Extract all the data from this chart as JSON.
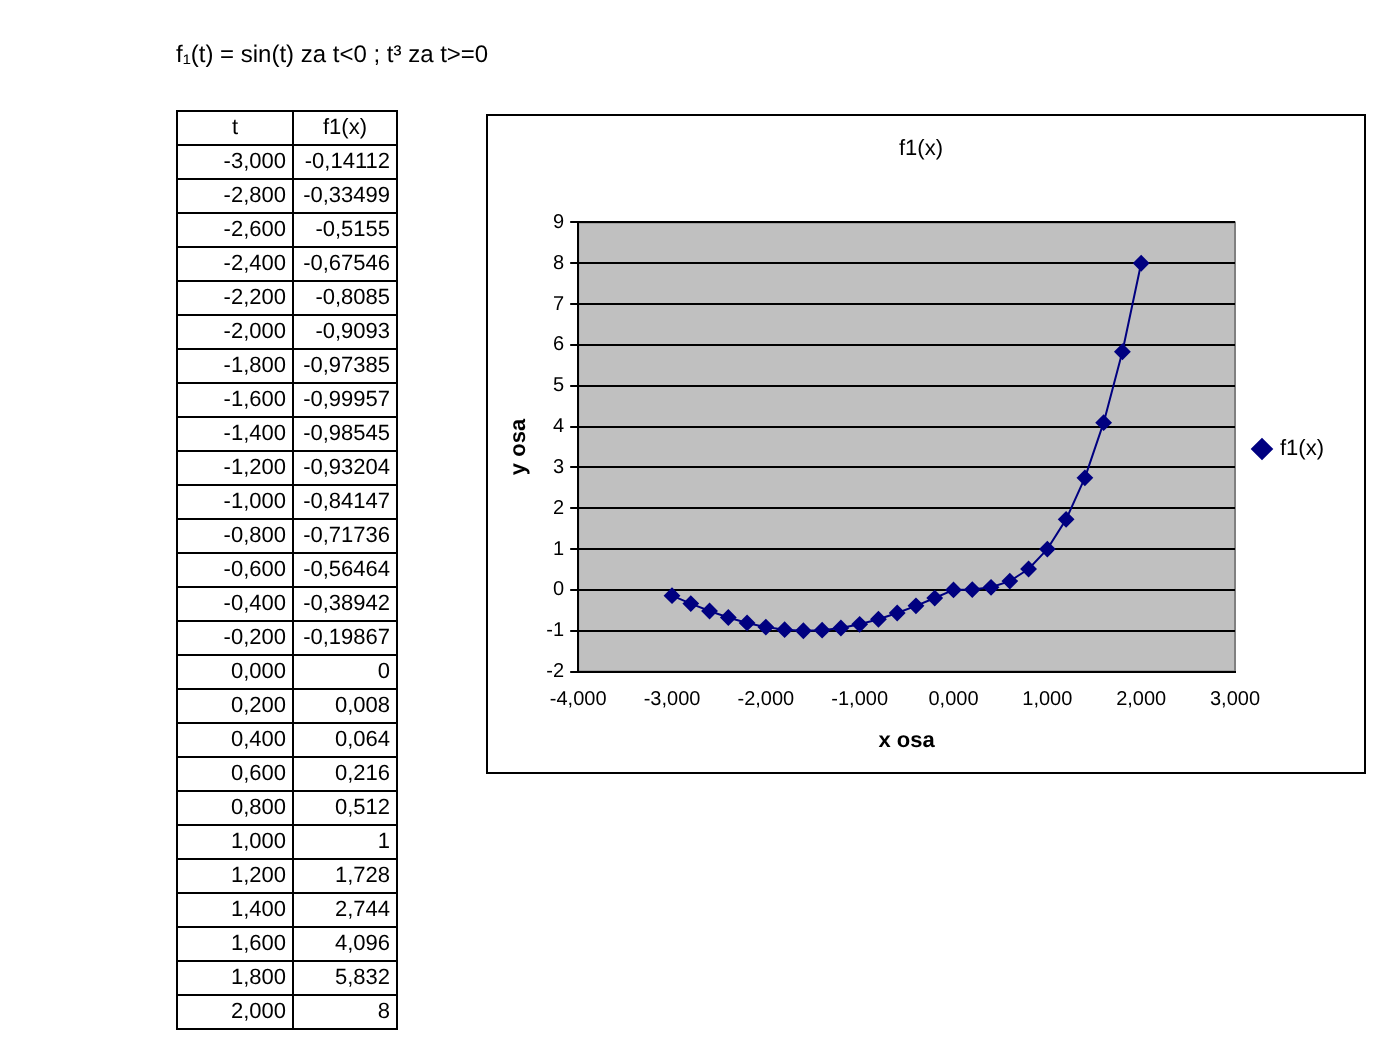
{
  "chart_data": {
    "type": "line",
    "title": "f1(x)",
    "xlabel": "x osa",
    "ylabel": "y osa",
    "annotations": [
      "f₁(t) = sin(t) za t<0 ; t³ za t>=0",
      "t",
      "-3,000",
      "-2,800",
      "-2,600",
      "-2,400",
      "-2,200",
      "-2,000",
      "-1,800",
      "-1,600",
      "-1,400",
      "-1,200",
      "-1,000",
      "-0,800",
      "-0,600",
      "-0,400",
      "-0,200",
      "0,000",
      "0,200",
      "0,400",
      "0,600",
      "0,800",
      "1,000",
      "1,200",
      "1,400",
      "1,600",
      "1,800",
      "2,000",
      "-0,14112",
      "-0,33499",
      "-0,5155",
      "-0,67546",
      "-0,8085",
      "-0,9093",
      "-0,97385",
      "-0,99957",
      "-0,98545",
      "-0,93204",
      "-0,84147",
      "-0,71736",
      "-0,56464",
      "-0,38942",
      "-0,19867",
      "0",
      "0,008",
      "0,064",
      "0,216",
      "0,512",
      "1",
      "1,728",
      "2,744",
      "4,096",
      "5,832",
      "8"
    ],
    "x": [
      -3,
      -2.8,
      -2.6,
      -2.4,
      -2.2,
      -2,
      -1.8,
      -1.6,
      -1.4,
      -1.2,
      -1,
      -0.8,
      -0.6,
      -0.4,
      -0.2,
      0,
      0.2,
      0.4,
      0.6,
      0.8,
      1,
      1.2,
      1.4,
      1.6,
      1.8,
      2
    ],
    "series": [
      {
        "name": "f1(x)",
        "color": "#000080",
        "values": [
          -0.14112,
          -0.33499,
          -0.5155,
          -0.67546,
          -0.8085,
          -0.9093,
          -0.97385,
          -0.99957,
          -0.98545,
          -0.93204,
          -0.84147,
          -0.71736,
          -0.56464,
          -0.38942,
          -0.19867,
          0,
          0.008,
          0.064,
          0.216,
          0.512,
          1,
          1.728,
          2.744,
          4.096,
          5.832,
          8
        ]
      }
    ],
    "xlim": [
      -4,
      3
    ],
    "xticks": [
      {
        "value": -4,
        "label": "-4,000"
      },
      {
        "value": -3,
        "label": "-3,000"
      },
      {
        "value": -2,
        "label": "-2,000"
      },
      {
        "value": -1,
        "label": "-1,000"
      },
      {
        "value": 0,
        "label": "0,000"
      },
      {
        "value": 1,
        "label": "1,000"
      },
      {
        "value": 2,
        "label": "2,000"
      },
      {
        "value": 3,
        "label": "3,000"
      }
    ],
    "ylim": [
      -2,
      9
    ],
    "yticks": [
      -2,
      -1,
      0,
      1,
      2,
      3,
      4,
      5,
      6,
      7,
      8,
      9
    ],
    "grid": "y",
    "legend": "right",
    "marker": "diamond",
    "line_style": "solid"
  }
}
